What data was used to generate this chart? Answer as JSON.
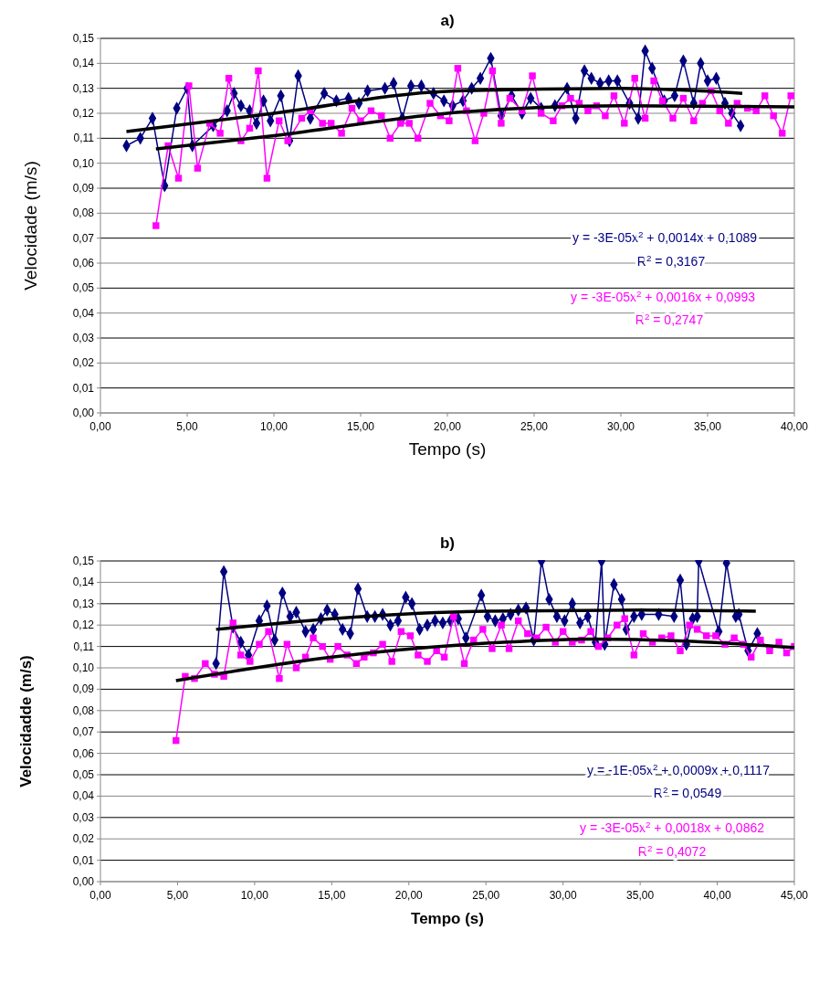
{
  "chart_data": [
    {
      "type": "line",
      "title": "a)",
      "xlabel": "Tempo (s)",
      "ylabel": "Velocidade (m/s)",
      "grid": "y",
      "xlim": [
        0,
        40
      ],
      "xticks": [
        {
          "value": 0,
          "label": "0,00"
        },
        {
          "value": 5,
          "label": "5,00"
        },
        {
          "value": 10,
          "label": "10,00"
        },
        {
          "value": 15,
          "label": "15,00"
        },
        {
          "value": 20,
          "label": "20,00"
        },
        {
          "value": 25,
          "label": "25,00"
        },
        {
          "value": 30,
          "label": "30,00"
        },
        {
          "value": 35,
          "label": "35,00"
        },
        {
          "value": 40,
          "label": "40,00"
        }
      ],
      "ylim": [
        0,
        0.15
      ],
      "yticks": [
        {
          "value": 0,
          "label": "0,00"
        },
        {
          "value": 0.01,
          "label": "0,01"
        },
        {
          "value": 0.02,
          "label": "0,02"
        },
        {
          "value": 0.03,
          "label": "0,03"
        },
        {
          "value": 0.04,
          "label": "0,04"
        },
        {
          "value": 0.05,
          "label": "0,05"
        },
        {
          "value": 0.06,
          "label": "0,06"
        },
        {
          "value": 0.07,
          "label": "0,07"
        },
        {
          "value": 0.08,
          "label": "0,08"
        },
        {
          "value": 0.09,
          "label": "0,09"
        },
        {
          "value": 0.1,
          "label": "0,10"
        },
        {
          "value": 0.11,
          "label": "0,11"
        },
        {
          "value": 0.12,
          "label": "0,12"
        },
        {
          "value": 0.13,
          "label": "0,13"
        },
        {
          "value": 0.14,
          "label": "0,14"
        },
        {
          "value": 0.15,
          "label": "0,15"
        }
      ],
      "series": [
        {
          "color": "#000080",
          "marker": "diamond",
          "x": [
            1.5,
            2.3,
            3.0,
            3.7,
            4.4,
            5.0,
            5.3,
            6.5,
            7.3,
            7.7,
            8.1,
            8.6,
            9.0,
            9.4,
            9.8,
            10.4,
            10.9,
            11.4,
            12.1,
            12.9,
            13.6,
            14.3,
            14.9,
            15.4,
            16.4,
            16.9,
            17.4,
            17.9,
            18.5,
            19.2,
            19.8,
            20.3,
            20.9,
            21.4,
            21.9,
            22.5,
            23.1,
            23.7,
            24.3,
            24.8,
            25.4,
            26.2,
            26.9,
            27.4,
            27.9,
            28.3,
            28.8,
            29.3,
            29.8,
            30.5,
            31.0,
            31.4,
            31.8,
            32.5,
            33.1,
            33.6,
            34.2,
            34.6,
            35.0,
            35.5,
            36.0,
            36.4,
            36.9
          ],
          "values": [
            0.107,
            0.11,
            0.118,
            0.091,
            0.122,
            0.13,
            0.107,
            0.115,
            0.121,
            0.128,
            0.123,
            0.121,
            0.116,
            0.125,
            0.117,
            0.127,
            0.109,
            0.135,
            0.118,
            0.128,
            0.125,
            0.126,
            0.124,
            0.129,
            0.13,
            0.132,
            0.118,
            0.131,
            0.131,
            0.128,
            0.125,
            0.123,
            0.125,
            0.13,
            0.134,
            0.142,
            0.119,
            0.127,
            0.12,
            0.126,
            0.122,
            0.123,
            0.13,
            0.118,
            0.137,
            0.134,
            0.132,
            0.133,
            0.133,
            0.124,
            0.118,
            0.145,
            0.138,
            0.125,
            0.127,
            0.141,
            0.124,
            0.14,
            0.133,
            0.134,
            0.124,
            0.12,
            0.115
          ]
        },
        {
          "color": "#ff00ff",
          "marker": "square",
          "x": [
            3.2,
            3.9,
            4.5,
            5.1,
            5.6,
            6.3,
            6.9,
            7.4,
            8.1,
            8.6,
            9.1,
            9.6,
            10.3,
            10.8,
            11.6,
            12.1,
            12.8,
            13.3,
            13.9,
            14.5,
            15.0,
            15.6,
            16.2,
            16.7,
            17.3,
            17.8,
            18.3,
            19.0,
            19.6,
            20.1,
            20.6,
            21.1,
            21.6,
            22.1,
            22.6,
            23.1,
            23.6,
            24.3,
            24.9,
            25.4,
            26.1,
            26.6,
            27.1,
            27.6,
            28.1,
            28.6,
            29.1,
            29.6,
            30.2,
            30.8,
            31.4,
            31.9,
            32.4,
            33.0,
            33.6,
            34.2,
            34.7,
            35.2,
            35.7,
            36.2,
            36.7,
            37.3,
            37.8,
            38.3,
            38.8,
            39.3,
            39.8
          ],
          "values": [
            0.075,
            0.107,
            0.094,
            0.131,
            0.098,
            0.116,
            0.112,
            0.134,
            0.109,
            0.114,
            0.137,
            0.094,
            0.117,
            0.109,
            0.118,
            0.121,
            0.116,
            0.116,
            0.112,
            0.122,
            0.117,
            0.121,
            0.119,
            0.11,
            0.116,
            0.116,
            0.11,
            0.124,
            0.119,
            0.117,
            0.138,
            0.121,
            0.109,
            0.12,
            0.137,
            0.116,
            0.126,
            0.121,
            0.135,
            0.12,
            0.117,
            0.123,
            0.126,
            0.124,
            0.121,
            0.123,
            0.119,
            0.127,
            0.116,
            0.134,
            0.118,
            0.133,
            0.125,
            0.118,
            0.126,
            0.117,
            0.124,
            0.129,
            0.121,
            0.116,
            0.124,
            0.122,
            0.121,
            0.127,
            0.119,
            0.112,
            0.127
          ]
        },
        {
          "type": "line",
          "color": "#000000",
          "marker": "none",
          "x": [
            1.5,
            10,
            20,
            30,
            37
          ],
          "values": [
            0.1127,
            0.12,
            0.1288,
            0.13,
            0.128
          ]
        },
        {
          "type": "line",
          "color": "#000000",
          "marker": "none",
          "x": [
            3.2,
            10,
            20,
            30,
            40
          ],
          "values": [
            0.1057,
            0.111,
            0.12,
            0.123,
            0.1226
          ]
        }
      ],
      "annotations": [
        "y = -3E-05x$^{2}$ + 0,0014x + 0,1089",
        "R$^{2}$ = 0,3167",
        "y = -3E-05x$^{2}$ + 0,0016x + 0,0993",
        "R$^{2}$ = 0,2747"
      ]
    },
    {
      "type": "line",
      "title": "b)",
      "xlabel": "Tempo (s)",
      "ylabel": "Velocidadde (m/s)",
      "grid": "y",
      "xlim": [
        0,
        45
      ],
      "xticks": [
        {
          "value": 0,
          "label": "0,00"
        },
        {
          "value": 5,
          "label": "5,00"
        },
        {
          "value": 10,
          "label": "10,00"
        },
        {
          "value": 15,
          "label": "15,00"
        },
        {
          "value": 20,
          "label": "20,00"
        },
        {
          "value": 25,
          "label": "25,00"
        },
        {
          "value": 30,
          "label": "30,00"
        },
        {
          "value": 35,
          "label": "35,00"
        },
        {
          "value": 40,
          "label": "40,00"
        },
        {
          "value": 45,
          "label": "45,00"
        }
      ],
      "ylim": [
        0,
        0.15
      ],
      "yticks": [
        {
          "value": 0,
          "label": "0,00"
        },
        {
          "value": 0.01,
          "label": "0,01"
        },
        {
          "value": 0.02,
          "label": "0,02"
        },
        {
          "value": 0.03,
          "label": "0,03"
        },
        {
          "value": 0.04,
          "label": "0,04"
        },
        {
          "value": 0.05,
          "label": "0,05"
        },
        {
          "value": 0.06,
          "label": "0,06"
        },
        {
          "value": 0.07,
          "label": "0,07"
        },
        {
          "value": 0.08,
          "label": "0,08"
        },
        {
          "value": 0.09,
          "label": "0,09"
        },
        {
          "value": 0.1,
          "label": "0,10"
        },
        {
          "value": 0.11,
          "label": "0,11"
        },
        {
          "value": 0.12,
          "label": "0,12"
        },
        {
          "value": 0.13,
          "label": "0,13"
        },
        {
          "value": 0.14,
          "label": "0,14"
        },
        {
          "value": 0.15,
          "label": "0,15"
        }
      ],
      "series": [
        {
          "color": "#000080",
          "marker": "diamond",
          "x": [
            7.5,
            8.0,
            8.6,
            9.1,
            9.6,
            10.3,
            10.8,
            11.3,
            11.8,
            12.3,
            12.7,
            13.3,
            13.8,
            14.3,
            14.7,
            15.2,
            15.7,
            16.2,
            16.7,
            17.3,
            17.8,
            18.3,
            18.8,
            19.3,
            19.8,
            20.2,
            20.7,
            21.2,
            21.7,
            22.2,
            22.7,
            23.2,
            23.7,
            24.7,
            25.1,
            25.6,
            26.1,
            26.6,
            27.1,
            27.6,
            28.1,
            28.6,
            29.1,
            29.6,
            30.1,
            30.6,
            31.1,
            31.6,
            32.1,
            32.5,
            32.7,
            33.3,
            33.8,
            34.1,
            34.6,
            35.1,
            36.2,
            37.2,
            37.6,
            38.0,
            38.4,
            38.7,
            38.8,
            40.1,
            40.6,
            41.2,
            41.4,
            42.0,
            42.6
          ],
          "values": [
            0.102,
            0.145,
            0.119,
            0.112,
            0.106,
            0.122,
            0.129,
            0.113,
            0.135,
            0.124,
            0.126,
            0.117,
            0.118,
            0.123,
            0.127,
            0.125,
            0.118,
            0.116,
            0.137,
            0.124,
            0.124,
            0.125,
            0.12,
            0.122,
            0.133,
            0.13,
            0.118,
            0.12,
            0.122,
            0.121,
            0.122,
            0.123,
            0.114,
            0.134,
            0.124,
            0.122,
            0.123,
            0.125,
            0.127,
            0.128,
            0.113,
            0.15,
            0.132,
            0.124,
            0.122,
            0.13,
            0.121,
            0.124,
            0.112,
            0.15,
            0.111,
            0.139,
            0.132,
            0.118,
            0.124,
            0.125,
            0.125,
            0.124,
            0.141,
            0.111,
            0.123,
            0.124,
            0.15,
            0.117,
            0.149,
            0.124,
            0.125,
            0.108,
            0.116
          ]
        },
        {
          "color": "#ff00ff",
          "marker": "square",
          "x": [
            4.9,
            5.5,
            6.1,
            6.8,
            7.4,
            8.0,
            8.6,
            9.1,
            9.7,
            10.3,
            10.9,
            11.6,
            12.1,
            12.7,
            13.3,
            13.8,
            14.4,
            14.9,
            15.4,
            16.0,
            16.6,
            17.1,
            17.7,
            18.3,
            18.9,
            19.5,
            20.1,
            20.6,
            21.2,
            21.8,
            22.3,
            22.9,
            23.6,
            24.2,
            24.8,
            25.4,
            26.0,
            26.5,
            27.1,
            27.7,
            28.3,
            28.9,
            29.5,
            30.0,
            30.6,
            31.2,
            31.8,
            32.3,
            32.9,
            33.5,
            34.0,
            34.6,
            35.2,
            35.8,
            36.4,
            37.0,
            37.6,
            38.2,
            38.7,
            39.3,
            39.9,
            40.5,
            41.1,
            41.7,
            42.2,
            42.8,
            43.4,
            44.0,
            44.5,
            45.0
          ],
          "values": [
            0.066,
            0.096,
            0.095,
            0.102,
            0.097,
            0.096,
            0.121,
            0.106,
            0.103,
            0.111,
            0.117,
            0.095,
            0.111,
            0.1,
            0.105,
            0.114,
            0.11,
            0.104,
            0.11,
            0.106,
            0.102,
            0.105,
            0.107,
            0.111,
            0.103,
            0.117,
            0.115,
            0.106,
            0.103,
            0.108,
            0.105,
            0.124,
            0.102,
            0.113,
            0.118,
            0.109,
            0.12,
            0.109,
            0.122,
            0.116,
            0.114,
            0.119,
            0.112,
            0.117,
            0.112,
            0.113,
            0.117,
            0.11,
            0.114,
            0.12,
            0.123,
            0.106,
            0.116,
            0.112,
            0.114,
            0.115,
            0.108,
            0.12,
            0.118,
            0.115,
            0.115,
            0.111,
            0.114,
            0.111,
            0.105,
            0.113,
            0.108,
            0.112,
            0.107,
            0.11
          ]
        },
        {
          "type": "line",
          "color": "#000000",
          "marker": "none",
          "x": [
            7.5,
            15,
            25,
            35,
            42.5
          ],
          "values": [
            0.118,
            0.123,
            0.1265,
            0.127,
            0.1265
          ]
        },
        {
          "type": "line",
          "color": "#000000",
          "marker": "none",
          "x": [
            4.9,
            15,
            25,
            32,
            38,
            45
          ],
          "values": [
            0.094,
            0.105,
            0.1115,
            0.1135,
            0.1125,
            0.1095
          ]
        }
      ],
      "annotations": [
        "y = -1E-05x$^{2}$ + 0,0009x + 0,1117",
        "R$^{2}$ = 0,0549",
        "y = -3E-05x$^{2}$ + 0,0018x + 0,0862",
        "R$^{2}$ = 0,4072"
      ]
    }
  ]
}
